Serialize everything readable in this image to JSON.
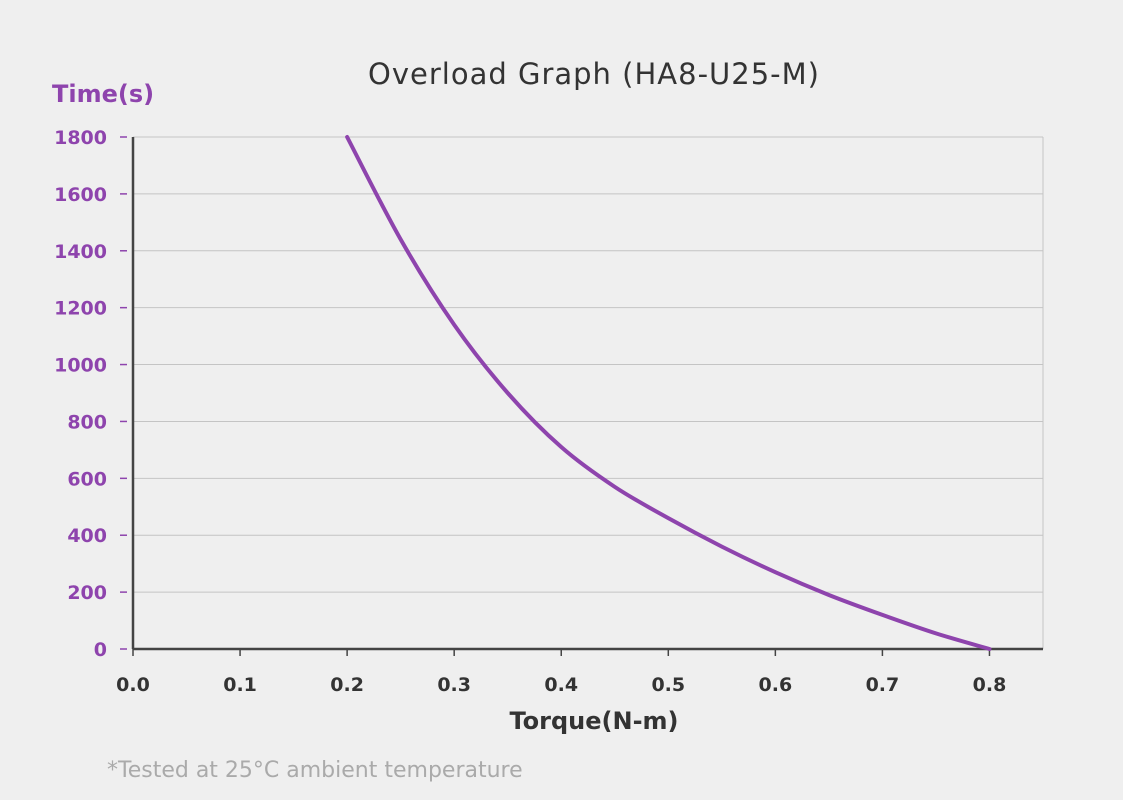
{
  "colors": {
    "series": "#8e44ad",
    "axis_text_y": "#8e44ad",
    "axis_text_x": "#333333",
    "grid": "#c4c4c4",
    "axis_line": "#444444",
    "background": "#efefef"
  },
  "footnote": "*Tested at 25°C ambient temperature",
  "chart_data": {
    "type": "line",
    "title": "Overload Graph  (HA8-U25-M)",
    "xlabel": "Torque(N-m)",
    "ylabel": "Time(s)",
    "xlim": [
      0,
      0.85
    ],
    "ylim": [
      0,
      1800
    ],
    "xticks": [
      "0.0",
      "0.1",
      "0.2",
      "0.3",
      "0.4",
      "0.5",
      "0.6",
      "0.7",
      "0.8"
    ],
    "yticks": [
      "0",
      "200",
      "400",
      "600",
      "800",
      "1000",
      "1200",
      "1400",
      "1600",
      "1800"
    ],
    "grid": "horizontal",
    "legend": "none",
    "series": [
      {
        "x": [
          0.2,
          0.25,
          0.3,
          0.35,
          0.4,
          0.45,
          0.5,
          0.55,
          0.6,
          0.65,
          0.7,
          0.75,
          0.8
        ],
        "y": [
          1800,
          1440,
          1140,
          900,
          710,
          570,
          460,
          360,
          270,
          190,
          120,
          55,
          0
        ]
      }
    ]
  }
}
